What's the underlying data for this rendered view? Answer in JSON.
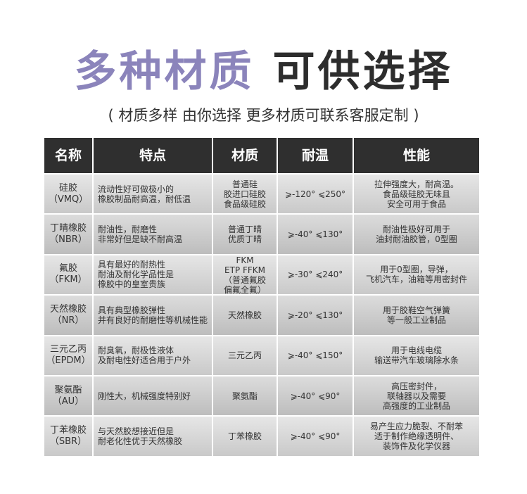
{
  "header": {
    "title_accent": "多种材质",
    "title_main": "可供选择",
    "subtitle": "( 材质多样 由你选择 更多材质可联系客服定制 )"
  },
  "table": {
    "columns": [
      "名称",
      "特点",
      "材质",
      "耐温",
      "性能"
    ],
    "rows": [
      [
        [
          "硅胶",
          "（VMQ）"
        ],
        [
          "流动性好可做极小的",
          "橡胶制品耐高温，耐低温"
        ],
        [
          "普通硅",
          "胶进口硅胶",
          "食品级硅胶"
        ],
        [
          "⩾-120°  ⩽250°"
        ],
        [
          "拉伸强度大，耐高温。",
          "食品级硅胶无味且",
          "安全可用于食品"
        ]
      ],
      [
        [
          "丁晴橡胶",
          "（NBR）"
        ],
        [
          "耐油性，耐磨性",
          "非常好但是缺不耐高温"
        ],
        [
          "普通丁晴",
          "优质丁晴"
        ],
        [
          "⩾-40°  ⩽130°"
        ],
        [
          "耐油性极好可用于",
          "油封耐油胶管，0型圈"
        ]
      ],
      [
        [
          "氟胶",
          "（FKM）"
        ],
        [
          "具有最好的耐热性",
          "耐油及耐化学品性是",
          "橡胶中的皇室贵族"
        ],
        [
          "FKM",
          "ETP FFKM",
          "（普通氟胶",
          "偏氟全氟）"
        ],
        [
          "⩾-30°  ⩽240°"
        ],
        [
          "用于0型圈，导弹，",
          "飞机汽车，油箱等用密封件"
        ]
      ],
      [
        [
          "天然橡胶",
          "（NR）"
        ],
        [
          "具有典型橡胶弹性",
          "并有良好的耐磨性等机械性能"
        ],
        [
          "天然橡胶"
        ],
        [
          "⩾-20°  ⩽130°"
        ],
        [
          "用于胶鞋空气弹簧",
          "等一般工业制品"
        ]
      ],
      [
        [
          "三元乙丙",
          "（EPDM）"
        ],
        [
          "耐臭氧，耐极性液体",
          "及耐电性好适合用于户外"
        ],
        [
          "三元乙丙"
        ],
        [
          "⩾-40°  ⩽150°"
        ],
        [
          "用于电线电缆",
          "输送带汽车玻璃除水条"
        ]
      ],
      [
        [
          "聚氨酯",
          "（AU）"
        ],
        [
          "刚性大，机械强度特别好"
        ],
        [
          "聚氨酯"
        ],
        [
          "⩾-40°  ⩽90°"
        ],
        [
          "高压密封件，",
          "联轴器以及需要",
          "高强度的工业制品"
        ]
      ],
      [
        [
          "丁苯橡胶",
          "（SBR）"
        ],
        [
          "与天然胶想接近但是",
          "耐老化性优于天然橡胶"
        ],
        [
          "丁苯橡胶"
        ],
        [
          "⩾-40°  ⩽90°"
        ],
        [
          "易产生应力脆裂、不耐苯",
          "适于制作绝缘透明件、",
          "装饰件及化学仪器"
        ]
      ]
    ]
  }
}
